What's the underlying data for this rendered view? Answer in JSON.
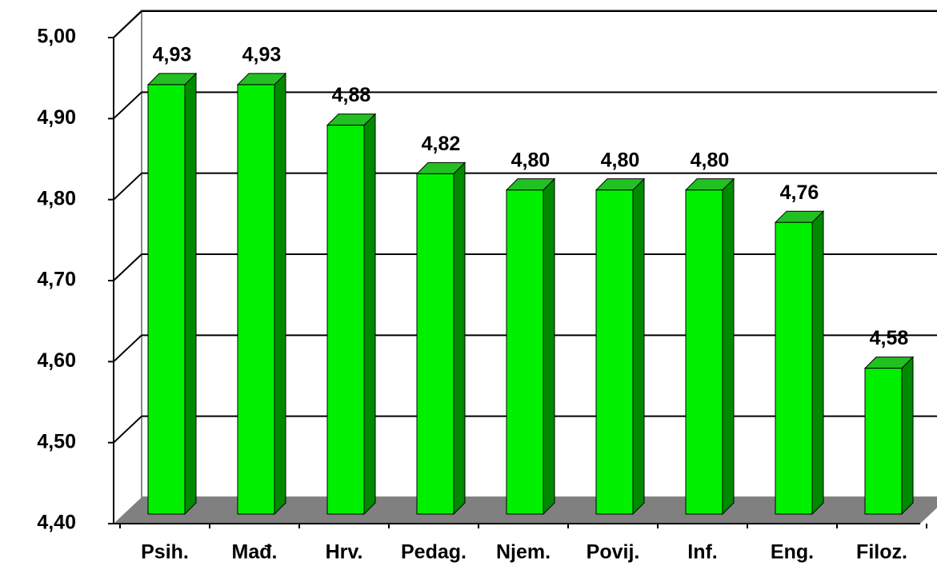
{
  "chart_data": {
    "type": "bar",
    "categories": [
      "Psih.",
      "Mađ.",
      "Hrv.",
      "Pedag.",
      "Njem.",
      "Povij.",
      "Inf.",
      "Eng.",
      "Filoz."
    ],
    "values": [
      4.93,
      4.93,
      4.88,
      4.82,
      4.8,
      4.8,
      4.8,
      4.76,
      4.58
    ],
    "value_labels": [
      "4,93",
      "4,93",
      "4,88",
      "4,82",
      "4,80",
      "4,80",
      "4,80",
      "4,76",
      "4,58"
    ],
    "color": "#00f000",
    "ylim": [
      4.4,
      5.0
    ],
    "yticks": [
      {
        "value": 4.4,
        "label": "4,40"
      },
      {
        "value": 4.5,
        "label": "4,50"
      },
      {
        "value": 4.6,
        "label": "4,60"
      },
      {
        "value": 4.7,
        "label": "4,70"
      },
      {
        "value": 4.8,
        "label": "4,80"
      },
      {
        "value": 4.9,
        "label": "4,90"
      },
      {
        "value": 5.0,
        "label": "5,00"
      }
    ],
    "grid": true
  }
}
